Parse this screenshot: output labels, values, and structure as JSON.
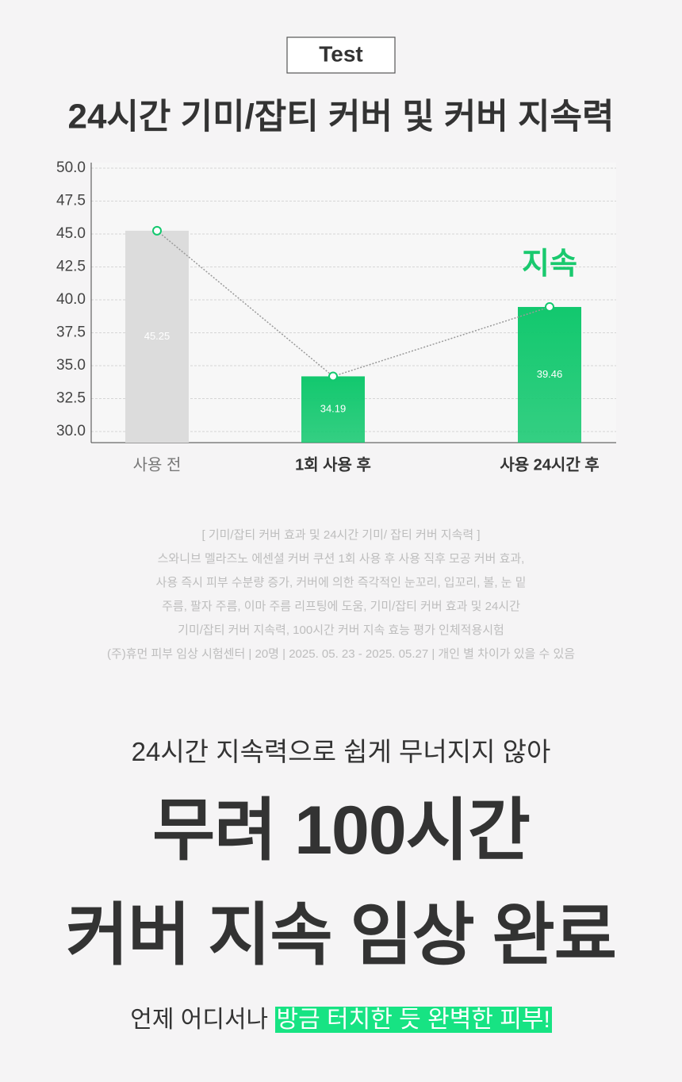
{
  "header": {
    "badge": "Test"
  },
  "chart_data": {
    "type": "bar",
    "title": "24시간 기미/잡티 커버 및 커버 지속력",
    "categories": [
      "사용 전",
      "1회 사용 후",
      "사용 24시간 후"
    ],
    "values": [
      45.25,
      34.19,
      39.46
    ],
    "colors": [
      "#dcdcdc",
      "#12c86e",
      "#12c86e"
    ],
    "line_color": "#9a9a9a",
    "marker_color": "#12c86e",
    "annotation": "지속",
    "annotation_color": "#19c96e",
    "ylim": [
      30,
      50
    ],
    "yticks": [
      {
        "value": 30,
        "label": "30.0"
      },
      32.5,
      {
        "value": 35,
        "label": "35.0"
      },
      37.5,
      {
        "value": 40,
        "label": "40.0"
      },
      42.5,
      {
        "value": 45,
        "label": "45.0"
      },
      47.5,
      {
        "value": 50,
        "label": "50.0"
      }
    ],
    "grid": true
  },
  "note": {
    "lines": [
      "[ 기미/잡티 커버 효과 및 24시간 기미/ 잡티 커버 지속력 ]",
      "스와니브 멜라즈노 에센셜 커버 쿠션 1회 사용 후 사용 직후 모공 커버 효과,",
      "사용 즉시 피부 수분량 증가, 커버에 의한 즉각적인 눈꼬리, 입꼬리, 볼, 눈 밑",
      "주름, 팔자 주름, 이마 주름 리프팅에 도움, 기미/잡티 커버 효과 및 24시간",
      "기미/잡티 커버 지속력, 100시간 커버 지속 효능 평가 인체적용시험",
      "(주)휴먼 피부 임상 시험센터 | 20명 | 2025. 05. 23 - 2025. 05.27 | 개인 별 차이가 있을 수 있음"
    ]
  },
  "headline": {
    "subtitle": "24시간 지속력으로 쉽게 무너지지 않아",
    "lines": [
      "무려 100시간",
      "커버 지속 임상 완료"
    ]
  },
  "footer": {
    "text": "언제 어디서나 ",
    "highlight": "방금 터치한 듯 완벽한 피부!"
  }
}
